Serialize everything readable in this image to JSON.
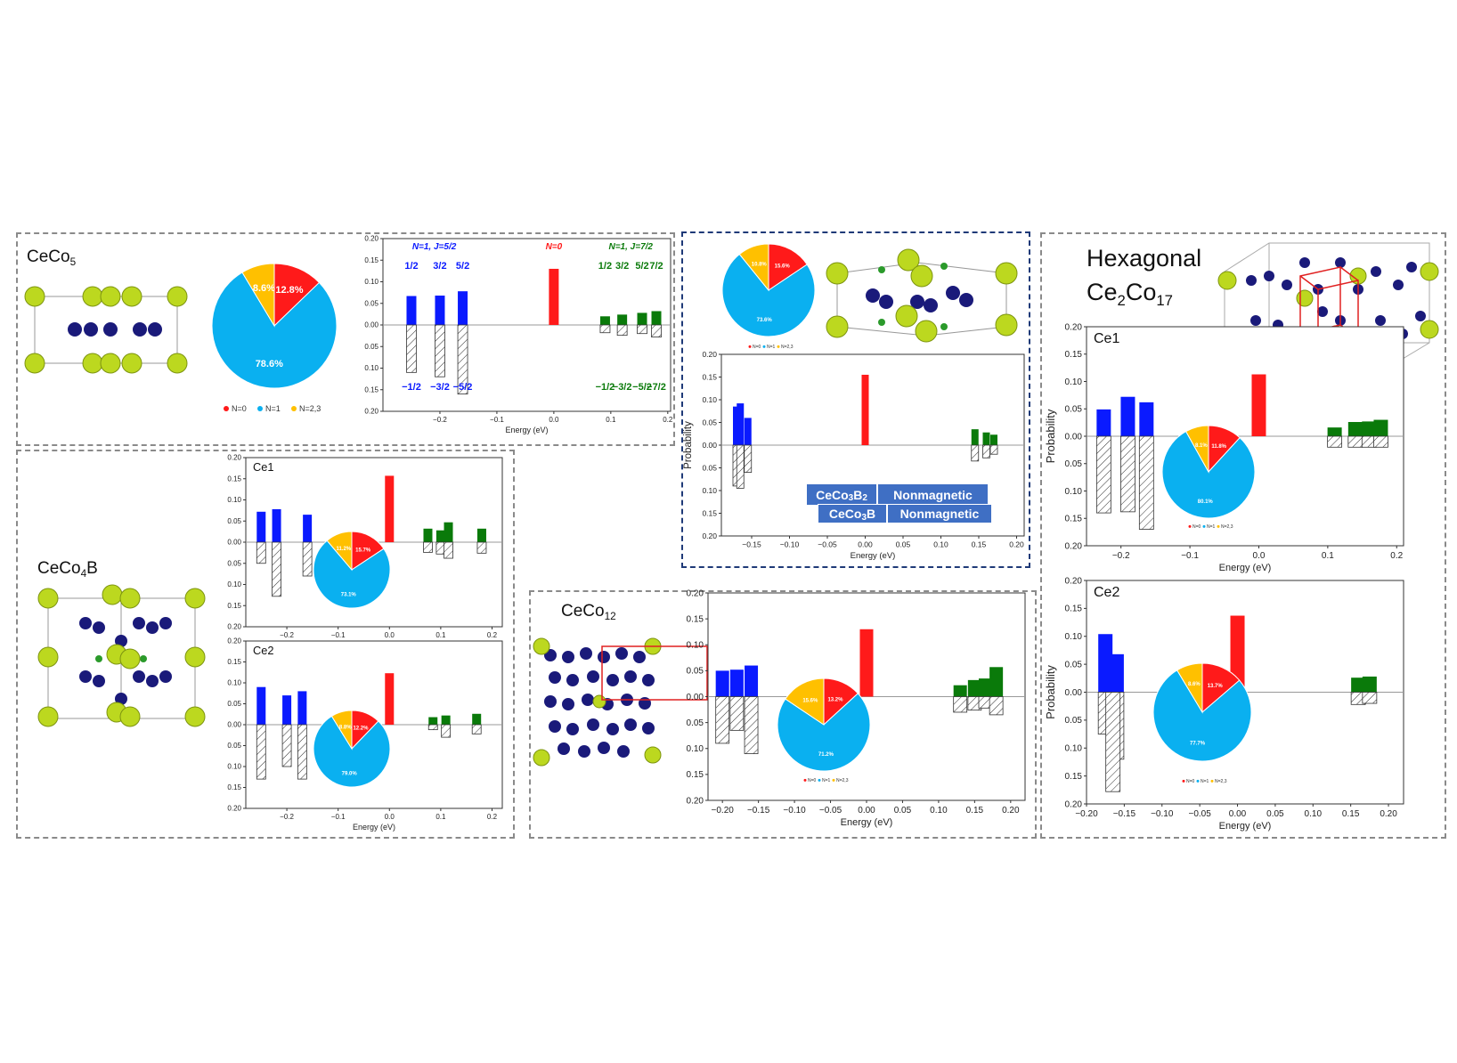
{
  "colors": {
    "N0": "#ff1a1a",
    "N1": "#0a1aff",
    "N1pie": "#0ab0f0",
    "N23": "#ffc000",
    "N1J72": "#0a7a0a",
    "navy_border": "#1f3a78"
  },
  "titles": {
    "ceco5": "CeCo",
    "ceco5_sub": "5",
    "ceco4b": "CeCo",
    "ceco4b_mid": "4",
    "ceco4b_tail": "B",
    "ceco12": "CeCo",
    "ceco12_sub": "12",
    "hex_line1": "Hexagonal",
    "ce2co17": "Ce",
    "ce2co17_s1": "2",
    "ce2co17_mid": "Co",
    "ce2co17_s2": "17"
  },
  "boron_labels": {
    "row1_compound": "CeCo",
    "row1_sub": "3",
    "row1_B": "B",
    "row1_bsub": "2",
    "row1_state": "Nonmagnetic",
    "row2_compound": "CeCo",
    "row2_sub": "3",
    "row2_B": "B",
    "row2_state": "Nonmagnetic"
  },
  "ceco5_annotations": {
    "blue_header": "N=1, J=5/2",
    "red_header": "N=0",
    "green_header": "N=1, J=7/2",
    "blue_top": [
      "1/2",
      "3/2",
      "5/2"
    ],
    "green_top": [
      "1/2",
      "3/2",
      "5/2",
      "7/2"
    ],
    "blue_bottom": [
      "−1/2",
      "−3/2",
      "−5/2"
    ],
    "green_bottom": [
      "−1/2",
      "−3/2",
      "−5/2",
      "−7/2"
    ]
  },
  "chart_data": [
    {
      "id": "ceco5",
      "type": "bar",
      "xlabel": "Energy (eV)",
      "ylabel": "",
      "xlim": [
        -0.3,
        0.205
      ],
      "ylim": [
        -0.2,
        0.2
      ],
      "xticks": [
        -0.2,
        -0.1,
        0.0,
        0.1,
        0.2
      ],
      "xtick_labels": [
        "−0.2",
        "−0.1",
        "0.0",
        "0.1",
        "0.2"
      ],
      "yticks": [
        0.2,
        0.15,
        0.1,
        0.05,
        0.0,
        -0.05,
        -0.1,
        -0.15,
        -0.2
      ],
      "ytick_labels": [
        "0.20",
        "0.15",
        "0.10",
        "0.05",
        "0.00",
        "0.05",
        "0.10",
        "0.15",
        "0.20"
      ],
      "bars": [
        {
          "x": -0.25,
          "up": 0.067,
          "down": 0.11,
          "color": "N1"
        },
        {
          "x": -0.2,
          "up": 0.068,
          "down": 0.12,
          "color": "N1"
        },
        {
          "x": -0.16,
          "up": 0.078,
          "down": 0.16,
          "color": "N1"
        },
        {
          "x": 0.0,
          "up": 0.13,
          "down": 0,
          "color": "N0"
        },
        {
          "x": 0.09,
          "up": 0.02,
          "down": 0.018,
          "color": "N1J72"
        },
        {
          "x": 0.12,
          "up": 0.024,
          "down": 0.024,
          "color": "N1J72"
        },
        {
          "x": 0.155,
          "up": 0.028,
          "down": 0.02,
          "color": "N1J72"
        },
        {
          "x": 0.18,
          "up": 0.032,
          "down": 0.028,
          "color": "N1J72"
        }
      ],
      "pie": {
        "slices": [
          {
            "label": "N=0",
            "value": 12.8,
            "text": "12.8%",
            "color": "N0"
          },
          {
            "label": "N=1",
            "value": 78.6,
            "text": "78.6%",
            "color": "N1pie"
          },
          {
            "label": "N=2,3",
            "value": 8.6,
            "text": "8.6%",
            "color": "N23"
          }
        ]
      },
      "legend": [
        "N=0",
        "N=1",
        "N=2,3"
      ]
    },
    {
      "id": "ceco4b_ce1",
      "type": "bar",
      "panel_label": "Ce1",
      "xlabel": "",
      "ylabel": "",
      "xlim": [
        -0.28,
        0.22
      ],
      "ylim": [
        -0.2,
        0.2
      ],
      "xticks": [
        -0.2,
        -0.1,
        0.0,
        0.1,
        0.2
      ],
      "xtick_labels": [
        "−0.2",
        "−0.1",
        "0.0",
        "0.1",
        "0.2"
      ],
      "yticks": [
        0.2,
        0.15,
        0.1,
        0.05,
        0.0,
        -0.05,
        -0.1,
        -0.15,
        -0.2
      ],
      "ytick_labels": [
        "0.20",
        "0.15",
        "0.10",
        "0.05",
        "0.00",
        "0.05",
        "0.10",
        "0.15",
        "0.20"
      ],
      "bars": [
        {
          "x": -0.25,
          "up": 0.072,
          "down": 0.05,
          "color": "N1"
        },
        {
          "x": -0.22,
          "up": 0.078,
          "down": 0.128,
          "color": "N1"
        },
        {
          "x": -0.16,
          "up": 0.065,
          "down": 0.08,
          "color": "N1"
        },
        {
          "x": 0.0,
          "up": 0.157,
          "down": 0,
          "color": "N0"
        },
        {
          "x": 0.075,
          "up": 0.032,
          "down": 0.024,
          "color": "N1J72"
        },
        {
          "x": 0.1,
          "up": 0.028,
          "down": 0.028,
          "color": "N1J72"
        },
        {
          "x": 0.115,
          "up": 0.047,
          "down": 0.038,
          "color": "N1J72"
        },
        {
          "x": 0.18,
          "up": 0.032,
          "down": 0.026,
          "color": "N1J72"
        }
      ],
      "pie": {
        "slices": [
          {
            "label": "N=0",
            "value": 15.7,
            "text": "15.7%",
            "color": "N0"
          },
          {
            "label": "N=1",
            "value": 73.1,
            "text": "73.1%",
            "color": "N1pie"
          },
          {
            "label": "N=2,3",
            "value": 11.2,
            "text": "11.2%",
            "color": "N23"
          }
        ]
      }
    },
    {
      "id": "ceco4b_ce2",
      "type": "bar",
      "panel_label": "Ce2",
      "xlabel": "Energy (eV)",
      "ylabel": "",
      "xlim": [
        -0.28,
        0.22
      ],
      "ylim": [
        -0.2,
        0.2
      ],
      "xticks": [
        -0.2,
        -0.1,
        0.0,
        0.1,
        0.2
      ],
      "xtick_labels": [
        "−0.2",
        "−0.1",
        "0.0",
        "0.1",
        "0.2"
      ],
      "yticks": [
        0.2,
        0.15,
        0.1,
        0.05,
        0.0,
        -0.05,
        -0.1,
        -0.15,
        -0.2
      ],
      "ytick_labels": [
        "0.20",
        "0.15",
        "0.10",
        "0.05",
        "0.00",
        "0.05",
        "0.10",
        "0.15",
        "0.20"
      ],
      "bars": [
        {
          "x": -0.25,
          "up": 0.09,
          "down": 0.13,
          "color": "N1"
        },
        {
          "x": -0.2,
          "up": 0.07,
          "down": 0.1,
          "color": "N1"
        },
        {
          "x": -0.17,
          "up": 0.08,
          "down": 0.13,
          "color": "N1"
        },
        {
          "x": 0.0,
          "up": 0.123,
          "down": 0,
          "color": "N0"
        },
        {
          "x": 0.085,
          "up": 0.018,
          "down": 0.012,
          "color": "N1J72"
        },
        {
          "x": 0.11,
          "up": 0.022,
          "down": 0.03,
          "color": "N1J72"
        },
        {
          "x": 0.17,
          "up": 0.026,
          "down": 0.022,
          "color": "N1J72"
        }
      ],
      "pie": {
        "slices": [
          {
            "label": "N=0",
            "value": 12.2,
            "text": "12.2%",
            "color": "N0"
          },
          {
            "label": "N=1",
            "value": 79.0,
            "text": "79.0%",
            "color": "N1pie"
          },
          {
            "label": "N=2,3",
            "value": 8.8,
            "text": "8.8%",
            "color": "N23"
          }
        ]
      }
    },
    {
      "id": "ceco12",
      "type": "bar",
      "xlabel": "Energy (eV)",
      "ylabel": "",
      "xlim": [
        -0.22,
        0.22
      ],
      "ylim": [
        -0.2,
        0.2
      ],
      "xticks": [
        -0.2,
        -0.15,
        -0.1,
        -0.05,
        0.0,
        0.05,
        0.1,
        0.15,
        0.2
      ],
      "xtick_labels": [
        "−0.20",
        "−0.15",
        "−0.10",
        "−0.05",
        "0.00",
        "0.05",
        "0.10",
        "0.15",
        "0.20"
      ],
      "yticks": [
        0.2,
        0.15,
        0.1,
        0.05,
        0.0,
        -0.05,
        -0.1,
        -0.15,
        -0.2
      ],
      "ytick_labels": [
        "0.20",
        "0.15",
        "0.10",
        "0.05",
        "0.00",
        "0.05",
        "0.10",
        "0.15",
        "0.20"
      ],
      "bars": [
        {
          "x": -0.2,
          "up": 0.05,
          "down": 0.09,
          "color": "N1"
        },
        {
          "x": -0.18,
          "up": 0.052,
          "down": 0.065,
          "color": "N1"
        },
        {
          "x": -0.16,
          "up": 0.06,
          "down": 0.11,
          "color": "N1"
        },
        {
          "x": 0.0,
          "up": 0.13,
          "down": 0,
          "color": "N0"
        },
        {
          "x": 0.13,
          "up": 0.022,
          "down": 0.03,
          "color": "N1J72"
        },
        {
          "x": 0.15,
          "up": 0.032,
          "down": 0.026,
          "color": "N1J72"
        },
        {
          "x": 0.165,
          "up": 0.035,
          "down": 0.022,
          "color": "N1J72"
        },
        {
          "x": 0.18,
          "up": 0.057,
          "down": 0.035,
          "color": "N1J72"
        }
      ],
      "pie": {
        "slices": [
          {
            "label": "N=0",
            "value": 13.2,
            "text": "13.2%",
            "color": "N0"
          },
          {
            "label": "N=1",
            "value": 71.2,
            "text": "71.2%",
            "color": "N1pie"
          },
          {
            "label": "N=2,3",
            "value": 15.6,
            "text": "15.6%",
            "color": "N23"
          }
        ]
      },
      "legend": [
        "N=0",
        "N=1",
        "N=2,3"
      ]
    },
    {
      "id": "boron",
      "type": "bar",
      "xlabel": "Energy (eV)",
      "ylabel": "Probability",
      "xlim": [
        -0.19,
        0.21
      ],
      "ylim": [
        -0.2,
        0.2
      ],
      "xticks": [
        -0.15,
        -0.1,
        -0.05,
        0.0,
        0.05,
        0.1,
        0.15,
        0.2
      ],
      "xtick_labels": [
        "−0.15",
        "−0.10",
        "−0.05",
        "0.00",
        "0.05",
        "0.10",
        "0.15",
        "0.20"
      ],
      "yticks": [
        0.2,
        0.15,
        0.1,
        0.05,
        0.0,
        -0.05,
        -0.1,
        -0.15,
        -0.2
      ],
      "ytick_labels": [
        "0.20",
        "0.15",
        "0.10",
        "0.05",
        "0.00",
        "0.05",
        "0.10",
        "0.15",
        "0.20"
      ],
      "bars": [
        {
          "x": -0.17,
          "up": 0.085,
          "down": 0.09,
          "color": "N1"
        },
        {
          "x": -0.165,
          "up": 0.092,
          "down": 0.095,
          "color": "N1"
        },
        {
          "x": -0.155,
          "up": 0.06,
          "down": 0.06,
          "color": "N1"
        },
        {
          "x": 0.0,
          "up": 0.155,
          "down": 0,
          "color": "N0"
        },
        {
          "x": 0.145,
          "up": 0.035,
          "down": 0.035,
          "color": "N1J72"
        },
        {
          "x": 0.16,
          "up": 0.028,
          "down": 0.028,
          "color": "N1J72"
        },
        {
          "x": 0.17,
          "up": 0.023,
          "down": 0.02,
          "color": "N1J72"
        }
      ],
      "pie": {
        "slices": [
          {
            "label": "N=0",
            "value": 15.6,
            "text": "15.6%",
            "color": "N0"
          },
          {
            "label": "N=1",
            "value": 73.6,
            "text": "73.6%",
            "color": "N1pie"
          },
          {
            "label": "N=2,3",
            "value": 10.8,
            "text": "10.8%",
            "color": "N23"
          }
        ]
      },
      "legend": [
        "N=0",
        "N=1",
        "N=2,3"
      ]
    },
    {
      "id": "ce2co17_ce1",
      "type": "bar",
      "panel_label": "Ce1",
      "xlabel": "Energy (eV)",
      "ylabel": "Probability",
      "xlim": [
        -0.25,
        0.21
      ],
      "ylim": [
        -0.2,
        0.2
      ],
      "xticks": [
        -0.2,
        -0.1,
        0.0,
        0.1,
        0.2
      ],
      "xtick_labels": [
        "−0.2",
        "−0.1",
        "0.0",
        "0.1",
        "0.2"
      ],
      "yticks": [
        0.2,
        0.15,
        0.1,
        0.05,
        0.0,
        -0.05,
        -0.1,
        -0.15,
        -0.2
      ],
      "ytick_labels": [
        "0.20",
        "0.15",
        "0.10",
        "0.05",
        "0.00",
        "0.05",
        "0.10",
        "0.15",
        "0.20"
      ],
      "bars": [
        {
          "x": -0.225,
          "up": 0.049,
          "down": 0.14,
          "color": "N1"
        },
        {
          "x": -0.19,
          "up": 0.072,
          "down": 0.138,
          "color": "N1"
        },
        {
          "x": -0.163,
          "up": 0.062,
          "down": 0.17,
          "color": "N1"
        },
        {
          "x": 0.0,
          "up": 0.113,
          "down": 0,
          "color": "N0"
        },
        {
          "x": 0.11,
          "up": 0.016,
          "down": 0.02,
          "color": "N1J72"
        },
        {
          "x": 0.14,
          "up": 0.026,
          "down": 0.02,
          "color": "N1J72"
        },
        {
          "x": 0.16,
          "up": 0.027,
          "down": 0.02,
          "color": "N1J72"
        },
        {
          "x": 0.177,
          "up": 0.03,
          "down": 0.02,
          "color": "N1J72"
        }
      ],
      "pie": {
        "slices": [
          {
            "label": "N=0",
            "value": 11.8,
            "text": "11.8%",
            "color": "N0"
          },
          {
            "label": "N=1",
            "value": 80.1,
            "text": "80.1%",
            "color": "N1pie"
          },
          {
            "label": "N=2,3",
            "value": 8.1,
            "text": "8.1%",
            "color": "N23"
          }
        ]
      },
      "legend": [
        "N=0",
        "N=1",
        "N=2,3"
      ]
    },
    {
      "id": "ce2co17_ce2",
      "type": "bar",
      "panel_label": "Ce2",
      "xlabel": "Energy (eV)",
      "ylabel": "Probability",
      "xlim": [
        -0.2,
        0.22
      ],
      "ylim": [
        -0.2,
        0.2
      ],
      "xticks": [
        -0.2,
        -0.15,
        -0.1,
        -0.05,
        0.0,
        0.05,
        0.1,
        0.15,
        0.2
      ],
      "xtick_labels": [
        "−0.20",
        "−0.15",
        "−0.10",
        "−0.05",
        "0.00",
        "0.05",
        "0.10",
        "0.15",
        "0.20"
      ],
      "yticks": [
        0.2,
        0.15,
        0.1,
        0.05,
        0.0,
        -0.05,
        -0.1,
        -0.15,
        -0.2
      ],
      "ytick_labels": [
        "0.20",
        "0.15",
        "0.10",
        "0.05",
        "0.00",
        "0.05",
        "0.10",
        "0.15",
        "0.20"
      ],
      "bars": [
        {
          "x": -0.175,
          "up": 0.104,
          "down": 0.075,
          "color": "N1"
        },
        {
          "x": -0.16,
          "up": 0.068,
          "down": 0.12,
          "color": "N1"
        },
        {
          "x": -0.165,
          "up": 0.0,
          "down": 0.178,
          "color": "N1"
        },
        {
          "x": 0.0,
          "up": 0.137,
          "down": 0,
          "color": "N0"
        },
        {
          "x": 0.16,
          "up": 0.026,
          "down": 0.022,
          "color": "N1J72"
        },
        {
          "x": 0.175,
          "up": 0.028,
          "down": 0.02,
          "color": "N1J72"
        }
      ],
      "pie": {
        "slices": [
          {
            "label": "N=0",
            "value": 13.7,
            "text": "13.7%",
            "color": "N0"
          },
          {
            "label": "N=1",
            "value": 77.7,
            "text": "77.7%",
            "color": "N1pie"
          },
          {
            "label": "N=2,3",
            "value": 8.6,
            "text": "8.6%",
            "color": "N23"
          }
        ]
      },
      "legend": [
        "N=0",
        "N=1",
        "N=2,3"
      ]
    }
  ]
}
